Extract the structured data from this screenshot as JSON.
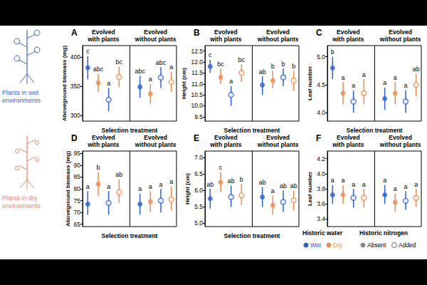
{
  "chart_data": [
    {
      "panel": "A",
      "type": "scatter",
      "y_label": "Aboveground biomass (mg)",
      "x_label": "Selection treatment",
      "groups": [
        "Evolved with plants",
        "Evolved without plants"
      ],
      "ylim": [
        290,
        420
      ],
      "yticks": [
        300,
        350,
        400
      ],
      "grid": false,
      "tick_labels": "y",
      "series": [
        {
          "water": "Wet",
          "nitrogen": "Absent",
          "color": "#2b5fd9",
          "marker": "filled",
          "values": [
            382,
            349
          ],
          "error_low": [
            362,
            330
          ],
          "error_high": [
            402,
            368
          ],
          "letters": [
            "c",
            "abc"
          ]
        },
        {
          "water": "Dry",
          "nitrogen": "Absent",
          "color": "#f08a4b",
          "marker": "filled",
          "values": [
            356,
            337
          ],
          "error_low": [
            340,
            320
          ],
          "error_high": [
            372,
            354
          ],
          "letters": [
            "abc",
            "a"
          ]
        },
        {
          "water": "Wet",
          "nitrogen": "Added",
          "color": "#2b5fd9",
          "marker": "open",
          "values": [
            327,
            365
          ],
          "error_low": [
            307,
            347
          ],
          "error_high": [
            347,
            383
          ],
          "letters": [
            "a",
            "abc"
          ]
        },
        {
          "water": "Dry",
          "nitrogen": "Added",
          "color": "#f08a4b",
          "marker": "open",
          "values": [
            366,
            357
          ],
          "error_low": [
            348,
            340
          ],
          "error_high": [
            384,
            375
          ],
          "letters": [
            "bc",
            "a"
          ]
        }
      ]
    },
    {
      "panel": "B",
      "type": "scatter",
      "y_label": "Height (cm)",
      "x_label": "Selection treatment",
      "groups": [
        "Evolved with plants",
        "Evolved without plants"
      ],
      "ylim": [
        9.3,
        12.75
      ],
      "yticks": [
        9.5,
        {
          "value": 10,
          "label": "10.0"
        },
        10.5,
        {
          "value": 11,
          "label": "11.0"
        },
        11.5,
        {
          "value": 12,
          "label": "12.0"
        },
        12.5
      ],
      "grid": false,
      "tick_labels": "y",
      "series": [
        {
          "water": "Wet",
          "nitrogen": "Absent",
          "color": "#2b5fd9",
          "marker": "filled",
          "values": [
            11.8,
            10.95
          ],
          "error_low": [
            11.5,
            10.5
          ],
          "error_high": [
            12.1,
            11.35
          ],
          "letters": [
            "c",
            "ab"
          ]
        },
        {
          "water": "Dry",
          "nitrogen": "Absent",
          "color": "#f08a4b",
          "marker": "filled",
          "values": [
            11.3,
            11.15
          ],
          "error_low": [
            11.0,
            10.8
          ],
          "error_high": [
            11.7,
            11.6
          ],
          "letters": [
            "bc",
            "b"
          ]
        },
        {
          "water": "Wet",
          "nitrogen": "Added",
          "color": "#2b5fd9",
          "marker": "open",
          "values": [
            10.5,
            11.3
          ],
          "error_low": [
            10.0,
            10.9
          ],
          "error_high": [
            10.9,
            11.7
          ],
          "letters": [
            "a",
            "b"
          ]
        },
        {
          "water": "Dry",
          "nitrogen": "Added",
          "color": "#f08a4b",
          "marker": "open",
          "values": [
            11.5,
            11.15
          ],
          "error_low": [
            11.1,
            10.7
          ],
          "error_high": [
            11.9,
            11.6
          ],
          "letters": [
            "bc",
            "b"
          ]
        }
      ]
    },
    {
      "panel": "C",
      "type": "scatter",
      "y_label": "Leaf number",
      "x_label": "Selection treatment",
      "groups": [
        "Evolved with plants",
        "Evolved without plants"
      ],
      "ylim": [
        3.85,
        5.2
      ],
      "yticks": [
        {
          "value": 4,
          "label": "4.0"
        },
        4.5,
        {
          "value": 5,
          "label": "5.0"
        }
      ],
      "grid": false,
      "tick_labels": "y",
      "series": [
        {
          "water": "Wet",
          "nitrogen": "Absent",
          "color": "#2b5fd9",
          "marker": "filled",
          "values": [
            4.8,
            4.25
          ],
          "error_low": [
            4.6,
            4.05
          ],
          "error_high": [
            5.0,
            4.45
          ],
          "letters": [
            "b",
            "a"
          ]
        },
        {
          "water": "Dry",
          "nitrogen": "Absent",
          "color": "#f08a4b",
          "marker": "filled",
          "values": [
            4.35,
            4.35
          ],
          "error_low": [
            4.15,
            4.15
          ],
          "error_high": [
            4.55,
            4.55
          ],
          "letters": [
            "a",
            "a"
          ]
        },
        {
          "water": "Wet",
          "nitrogen": "Added",
          "color": "#2b5fd9",
          "marker": "open",
          "values": [
            4.2,
            4.2
          ],
          "error_low": [
            4.0,
            4.0
          ],
          "error_high": [
            4.4,
            4.4
          ],
          "letters": [
            "a",
            "a"
          ]
        },
        {
          "water": "Dry",
          "nitrogen": "Added",
          "color": "#f08a4b",
          "marker": "open",
          "values": [
            4.35,
            4.5
          ],
          "error_low": [
            4.15,
            4.3
          ],
          "error_high": [
            4.6,
            4.7
          ],
          "letters": [
            "a",
            "ab"
          ]
        }
      ]
    },
    {
      "panel": "D",
      "type": "scatter",
      "y_label": "Aboveground biomass (mg)",
      "x_label": "Selection treatment",
      "groups": [
        "Evolved with plants",
        "Evolved without plants"
      ],
      "ylim": [
        64,
        96
      ],
      "yticks": [
        65,
        70,
        75,
        80,
        85,
        90,
        95
      ],
      "grid": false,
      "tick_labels": "y",
      "series": [
        {
          "water": "Wet",
          "nitrogen": "Absent",
          "color": "#2b5fd9",
          "marker": "filled",
          "values": [
            73.5,
            73.5
          ],
          "error_low": [
            69,
            69
          ],
          "error_high": [
            79,
            78
          ],
          "letters": [
            "a",
            "a"
          ]
        },
        {
          "water": "Dry",
          "nitrogen": "Absent",
          "color": "#f08a4b",
          "marker": "filled",
          "values": [
            82,
            74.5
          ],
          "error_low": [
            77,
            70
          ],
          "error_high": [
            87,
            79
          ],
          "letters": [
            "b",
            "a"
          ]
        },
        {
          "water": "Wet",
          "nitrogen": "Added",
          "color": "#2b5fd9",
          "marker": "open",
          "values": [
            74,
            75
          ],
          "error_low": [
            69,
            70
          ],
          "error_high": [
            79,
            80
          ],
          "letters": [
            "a",
            "a"
          ]
        },
        {
          "water": "Dry",
          "nitrogen": "Added",
          "color": "#f08a4b",
          "marker": "open",
          "values": [
            78.5,
            75.5
          ],
          "error_low": [
            74,
            71
          ],
          "error_high": [
            84,
            81
          ],
          "letters": [
            "ab",
            "a"
          ]
        }
      ]
    },
    {
      "panel": "E",
      "type": "scatter",
      "y_label": "Height (cm)",
      "x_label": "Selection treatment",
      "groups": [
        "Evolved with plants",
        "Evolved without plants"
      ],
      "ylim": [
        4.9,
        7.2
      ],
      "yticks": [
        {
          "value": 5,
          "label": "5.0"
        },
        5.5,
        {
          "value": 6,
          "label": "6.0"
        },
        6.5,
        {
          "value": 7,
          "label": "7.0"
        }
      ],
      "grid": false,
      "tick_labels": "y",
      "series": [
        {
          "water": "Wet",
          "nitrogen": "Absent",
          "color": "#2b5fd9",
          "marker": "filled",
          "values": [
            5.75,
            5.8
          ],
          "error_low": [
            5.45,
            5.5
          ],
          "error_high": [
            6.05,
            6.1
          ],
          "letters": [
            "ab",
            "ab"
          ]
        },
        {
          "water": "Dry",
          "nitrogen": "Absent",
          "color": "#f08a4b",
          "marker": "filled",
          "values": [
            6.25,
            5.55
          ],
          "error_low": [
            5.95,
            5.25
          ],
          "error_high": [
            6.55,
            5.85
          ],
          "letters": [
            "c",
            "a"
          ]
        },
        {
          "water": "Wet",
          "nitrogen": "Added",
          "color": "#2b5fd9",
          "marker": "open",
          "values": [
            5.8,
            5.65
          ],
          "error_low": [
            5.5,
            5.35
          ],
          "error_high": [
            6.15,
            6.0
          ],
          "letters": [
            "ab",
            "ab"
          ]
        },
        {
          "water": "Dry",
          "nitrogen": "Added",
          "color": "#f08a4b",
          "marker": "open",
          "values": [
            5.85,
            5.7
          ],
          "error_low": [
            5.55,
            5.4
          ],
          "error_high": [
            6.2,
            6.0
          ],
          "letters": [
            "b",
            "ab"
          ]
        }
      ]
    },
    {
      "panel": "F",
      "type": "scatter",
      "y_label": "Leaf number",
      "groups": [
        "Evolved with plants",
        "Evolved without plants"
      ],
      "ylim": [
        3.3,
        4.3
      ],
      "yticks": [
        3.4,
        3.6,
        3.8,
        {
          "value": 4,
          "label": "4.0"
        },
        4.2
      ],
      "grid": false,
      "tick_labels": "y",
      "series": [
        {
          "water": "Wet",
          "nitrogen": "Absent",
          "color": "#2b5fd9",
          "marker": "filled",
          "values": [
            3.72,
            3.72
          ],
          "error_low": [
            3.6,
            3.6
          ],
          "error_high": [
            3.85,
            3.85
          ],
          "letters": [
            "a",
            "a"
          ]
        },
        {
          "water": "Dry",
          "nitrogen": "Absent",
          "color": "#f08a4b",
          "marker": "filled",
          "values": [
            3.72,
            3.62
          ],
          "error_low": [
            3.6,
            3.5
          ],
          "error_high": [
            3.85,
            3.74
          ],
          "letters": [
            "a",
            "a"
          ]
        },
        {
          "water": "Wet",
          "nitrogen": "Added",
          "color": "#2b5fd9",
          "marker": "open",
          "values": [
            3.68,
            3.64
          ],
          "error_low": [
            3.55,
            3.52
          ],
          "error_high": [
            3.8,
            3.77
          ],
          "letters": [
            "a",
            "a"
          ]
        },
        {
          "water": "Dry",
          "nitrogen": "Added",
          "color": "#f08a4b",
          "marker": "open",
          "values": [
            3.68,
            3.68
          ],
          "error_low": [
            3.55,
            3.56
          ],
          "error_high": [
            3.8,
            3.8
          ],
          "letters": [
            "a",
            "a"
          ]
        }
      ]
    }
  ],
  "row_labels": [
    {
      "text": "Plants in wet environments",
      "color": "#3a66cc"
    },
    {
      "text": "Plants in dry environments",
      "color": "#e8866a"
    }
  ],
  "key": {
    "water_title": "Historic water",
    "water": [
      {
        "name": "Wet",
        "color": "#2b5fd9"
      },
      {
        "name": "Dry",
        "color": "#f08a4b"
      }
    ],
    "nitrogen_title": "Historic nitrogen",
    "nitrogen": [
      {
        "name": "Absent",
        "marker": "filled",
        "color": "#888888"
      },
      {
        "name": "Added",
        "marker": "open",
        "color": "#888888"
      }
    ]
  }
}
